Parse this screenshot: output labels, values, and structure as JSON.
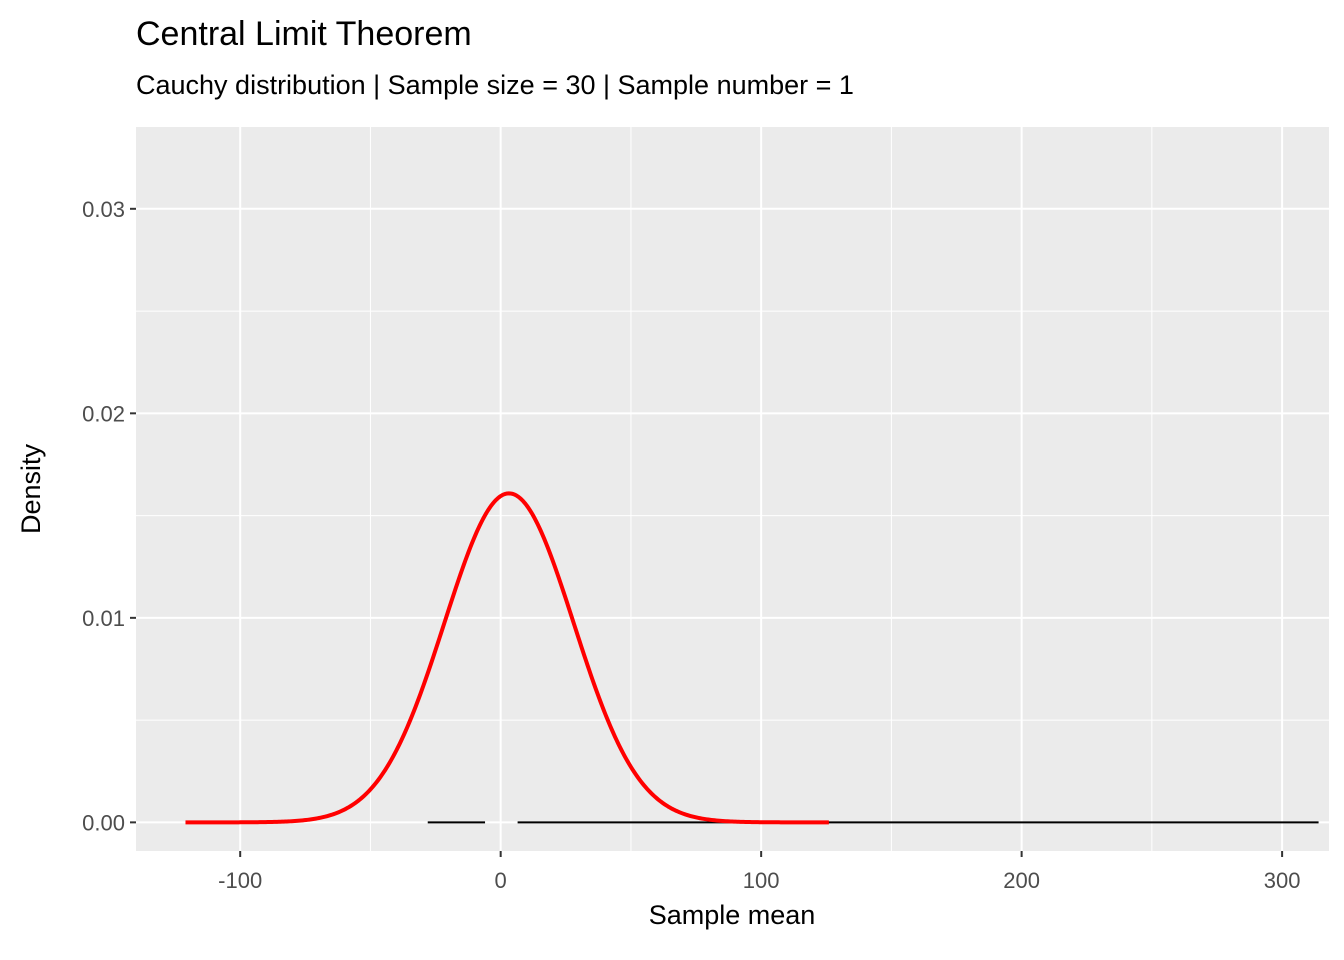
{
  "chart_data": {
    "type": "line",
    "title": "Central Limit Theorem",
    "subtitle": "Cauchy distribution | Sample size = 30 | Sample number = 1",
    "xlabel": "Sample mean",
    "ylabel": "Density",
    "xlim": [
      -140,
      318
    ],
    "ylim": [
      -0.0014,
      0.034
    ],
    "x_ticks": [
      -100,
      0,
      100,
      200,
      300
    ],
    "x_tick_labels": [
      "-100",
      "0",
      "100",
      "200",
      "300"
    ],
    "y_ticks": [
      0,
      0.01,
      0.02,
      0.03
    ],
    "y_tick_labels": [
      "0.00",
      "0.01",
      "0.02",
      "0.03"
    ],
    "grid": true,
    "legend": "none",
    "colors": {
      "panel": "#ebebeb",
      "grid": "#ffffff",
      "curve": "#ff0000",
      "segments": "#000000"
    },
    "series": [
      {
        "type": "normal_density_curve",
        "color": "#ff0000",
        "mean": 3.2,
        "sd": 24.8,
        "x_range": [
          -121,
          126
        ]
      },
      {
        "type": "segments",
        "color": "#000000",
        "segments": [
          {
            "x": [
              -28,
              -6
            ],
            "y": 0
          },
          {
            "x": [
              6.5,
              314
            ],
            "y": 0
          }
        ]
      }
    ]
  }
}
